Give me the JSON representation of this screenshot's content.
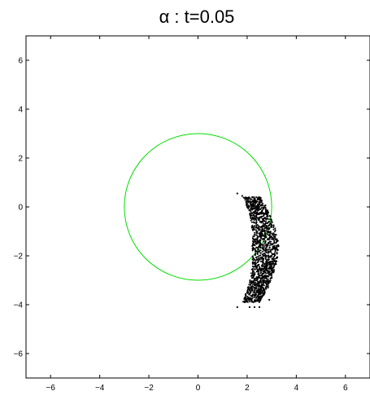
{
  "chart_data": {
    "type": "scatter",
    "title": "α : t=0.05",
    "xlabel": "",
    "ylabel": "",
    "xlim": [
      -7,
      7
    ],
    "ylim": [
      -7,
      7
    ],
    "xticks": [
      -6,
      -4,
      -2,
      0,
      2,
      4,
      6
    ],
    "yticks": [
      -6,
      -4,
      -2,
      0,
      2,
      4,
      6
    ],
    "xtick_labels": [
      "−6",
      "−4",
      "−2",
      "0",
      "2",
      "4",
      "6"
    ],
    "ytick_labels": [
      "−6",
      "−4",
      "−2",
      "0",
      "2",
      "4",
      "6"
    ],
    "grid": false,
    "legend": "none",
    "circle": {
      "center": [
        0,
        0
      ],
      "radius": 3,
      "color": "#00dd00"
    },
    "points_color": "#000000",
    "points": [
      [
        1.6,
        0.55
      ],
      [
        1.8,
        0.45
      ],
      [
        2.0,
        0.35
      ],
      [
        2.05,
        0.2
      ],
      [
        2.15,
        0.1
      ],
      [
        2.2,
        -0.05
      ],
      [
        2.35,
        -0.15
      ],
      [
        2.4,
        -0.3
      ],
      [
        2.5,
        -0.45
      ],
      [
        2.55,
        -0.6
      ],
      [
        2.6,
        -0.8
      ],
      [
        2.65,
        -1.0
      ],
      [
        2.7,
        -1.2
      ],
      [
        2.75,
        -1.4
      ],
      [
        2.8,
        -1.6
      ],
      [
        2.75,
        -1.8
      ],
      [
        2.7,
        -2.0
      ],
      [
        2.65,
        -2.2
      ],
      [
        2.6,
        -2.4
      ],
      [
        2.55,
        -2.6
      ],
      [
        2.5,
        -2.8
      ],
      [
        2.4,
        -3.0
      ],
      [
        2.3,
        -3.2
      ],
      [
        2.2,
        -3.35
      ],
      [
        2.1,
        -3.55
      ],
      [
        2.3,
        -3.6
      ],
      [
        2.5,
        -3.75
      ],
      [
        2.0,
        -3.75
      ],
      [
        1.9,
        -3.9
      ],
      [
        2.1,
        -4.1
      ],
      [
        2.3,
        -4.1
      ],
      [
        2.5,
        -4.1
      ],
      [
        1.6,
        -4.1
      ],
      [
        2.9,
        -3.8
      ],
      [
        3.0,
        -2.9
      ],
      [
        3.1,
        -2.4
      ],
      [
        3.0,
        -2.0
      ],
      [
        2.95,
        -1.5
      ],
      [
        2.9,
        -0.9
      ],
      [
        2.6,
        -0.2
      ],
      [
        2.3,
        0.25
      ],
      [
        3.05,
        -1.7
      ],
      [
        3.1,
        -2.2
      ],
      [
        2.45,
        -3.4
      ],
      [
        2.25,
        -3.9
      ],
      [
        2.7,
        -3.55
      ],
      [
        2.85,
        -3.3
      ],
      [
        2.85,
        -2.7
      ],
      [
        2.95,
        -1.25
      ],
      [
        2.5,
        -1.1
      ]
    ]
  }
}
